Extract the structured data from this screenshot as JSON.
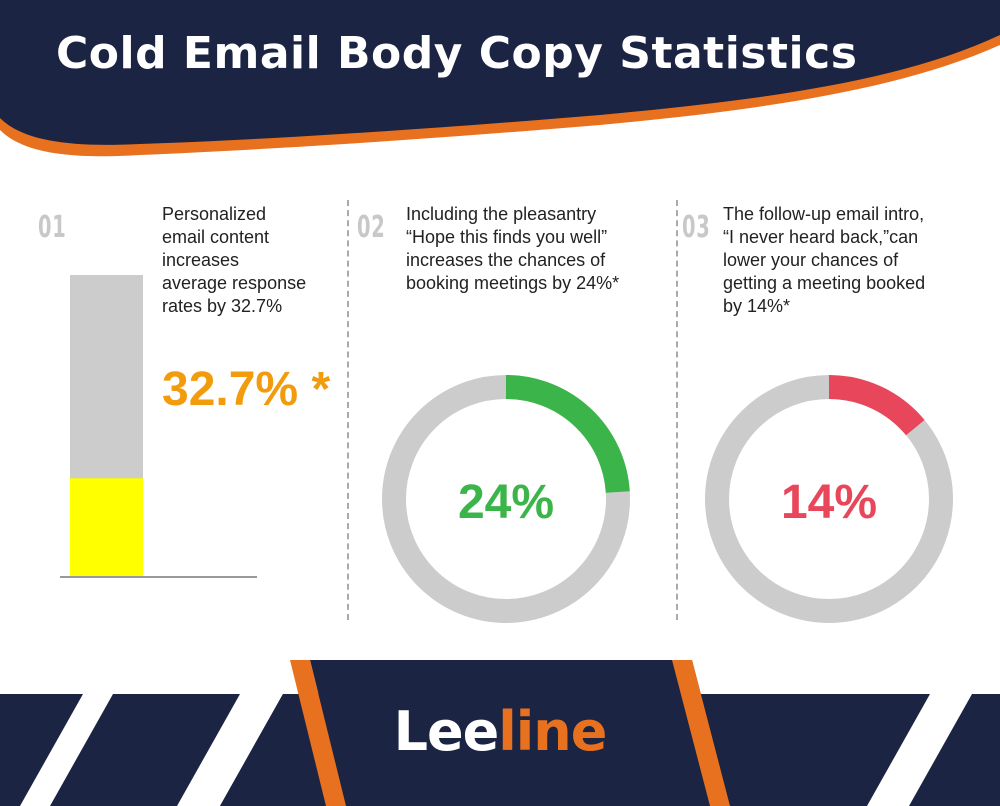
{
  "header": {
    "title": "Cold Email Body Copy Statistics"
  },
  "colors": {
    "navy": "#1b2443",
    "orange": "#e8711f",
    "gray": "#cccccc",
    "yellow": "#ffff00",
    "green": "#3bb54a",
    "red": "#e8475b",
    "amber": "#f29b0c"
  },
  "stats": [
    {
      "number": "01",
      "text_lines": [
        "Personalized",
        "email content",
        "increases",
        "average response",
        "rates by 32.7%"
      ],
      "value_label": "32.7% *"
    },
    {
      "number": "02",
      "text_lines": [
        "Including the pleasantry",
        "“Hope this finds you well”",
        "increases the chances of",
        "booking meetings by 24%*"
      ],
      "value_label": "24%"
    },
    {
      "number": "03",
      "text_lines": [
        "The follow-up email intro,",
        "“I never heard back,”can",
        "lower your chances of",
        "getting a meeting booked",
        "by 14%*"
      ],
      "value_label": "14%"
    }
  ],
  "chart_data": [
    {
      "type": "bar",
      "categories": [
        ""
      ],
      "values": [
        32.7
      ],
      "ylim": [
        0,
        100
      ]
    },
    {
      "type": "pie",
      "values": [
        24,
        76
      ]
    },
    {
      "type": "pie",
      "values": [
        14,
        86
      ]
    }
  ],
  "footer": {
    "brand_part1": "Lee",
    "brand_part2": "line"
  }
}
